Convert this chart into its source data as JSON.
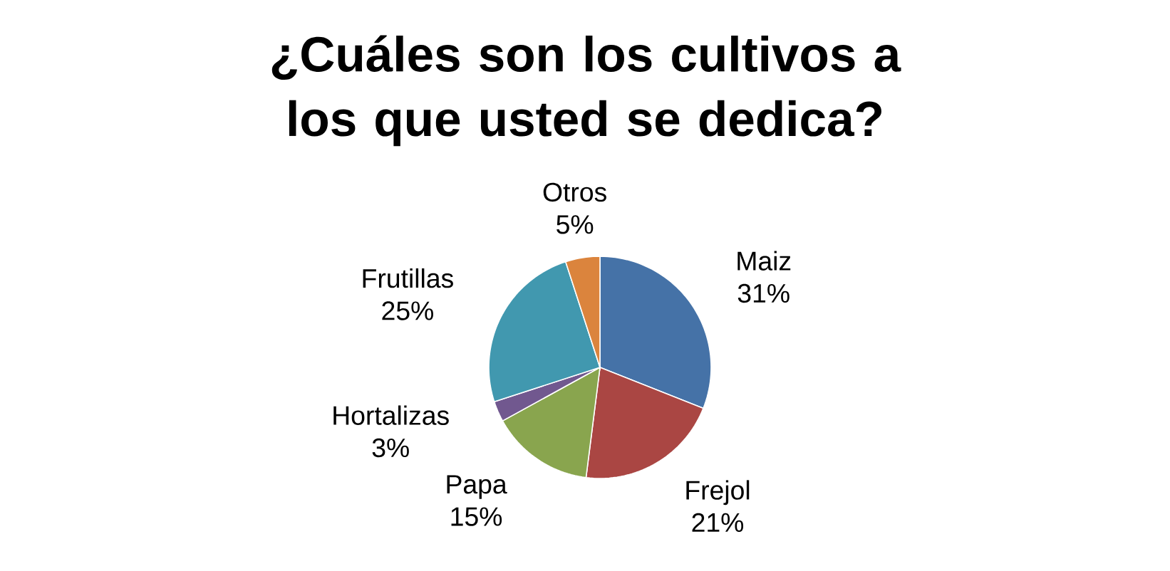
{
  "chart_data": {
    "type": "pie",
    "title": "¿Cuáles son los cultivos a los que usted se dedica?",
    "categories": [
      "Maiz",
      "Frejol",
      "Papa",
      "Hortalizas",
      "Frutillas",
      "Otros"
    ],
    "values": [
      31,
      21,
      15,
      3,
      25,
      5
    ],
    "value_labels": [
      "31%",
      "21%",
      "15%",
      "3%",
      "25%",
      "5%"
    ],
    "colors": [
      "#4572a7",
      "#aa4643",
      "#89a54e",
      "#71588f",
      "#4198af",
      "#db843d"
    ]
  }
}
